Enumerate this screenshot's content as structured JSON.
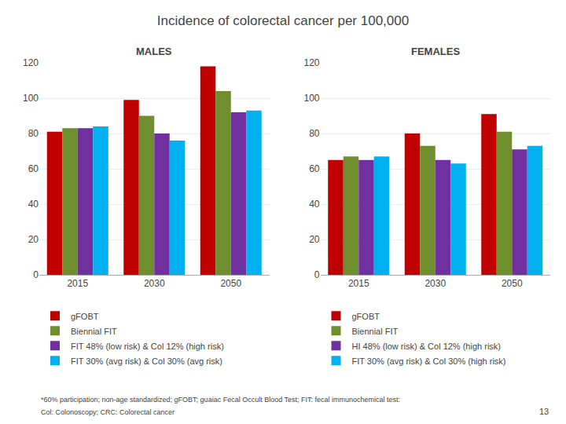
{
  "title": "Incidence of colorectal cancer per 100,000",
  "annotations": [
    {
      "text": "*60% participation; non-age standardized; gFOBT; guaiac Fecal Occult Blood Test; FIT: fecal immunochemical test:"
    },
    {
      "text": "Col: Colonoscopy; CRC: Colorectal cancer"
    },
    {
      "text": "13"
    }
  ],
  "chart_data": [
    {
      "type": "bar",
      "title": "MALES",
      "categories": [
        "2015",
        "2030",
        "2050"
      ],
      "series": [
        {
          "name": "gFOBT",
          "color": "#c00000",
          "values": [
            81,
            99,
            118
          ]
        },
        {
          "name": "Biennial FIT",
          "color": "#6f8f2e",
          "values": [
            83,
            90,
            104
          ]
        },
        {
          "name": "FIT 48% (low risk) & Col 12% (high risk)",
          "color": "#7030a0",
          "values": [
            83,
            80,
            92
          ]
        },
        {
          "name": "FIT 30% (avg risk) & Col 30% (avg risk)",
          "color": "#00b0f0",
          "values": [
            84,
            76,
            93
          ]
        }
      ],
      "ylim": [
        0,
        120
      ],
      "yticks": [
        0,
        20,
        40,
        60,
        80,
        100,
        120
      ],
      "grid": true,
      "legend": "bottom"
    },
    {
      "type": "bar",
      "title": "FEMALES",
      "categories": [
        "2015",
        "2030",
        "2050"
      ],
      "series": [
        {
          "name": "gFOBT",
          "color": "#c00000",
          "values": [
            65,
            80,
            91
          ]
        },
        {
          "name": "Biennial FIT",
          "color": "#6f8f2e",
          "values": [
            67,
            73,
            81
          ]
        },
        {
          "name": "HI 48% (low risk) & Col 12% (high risk)",
          "color": "#7030a0",
          "values": [
            65,
            65,
            71
          ]
        },
        {
          "name": "FIT 30% (avg risk) & Col 30% (high risk)",
          "color": "#00b0f0",
          "values": [
            67,
            63,
            73
          ]
        }
      ],
      "ylim": [
        0,
        120
      ],
      "yticks": [
        0,
        20,
        40,
        60,
        80,
        100,
        120
      ],
      "grid": true,
      "legend": "bottom"
    }
  ]
}
